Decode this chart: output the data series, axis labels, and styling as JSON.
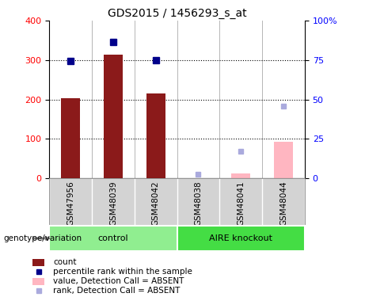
{
  "title": "GDS2015 / 1456293_s_at",
  "samples": [
    "GSM47956",
    "GSM48039",
    "GSM48042",
    "GSM48038",
    "GSM48041",
    "GSM48044"
  ],
  "bar_values": [
    203,
    313,
    215,
    null,
    null,
    null
  ],
  "bar_values_absent": [
    null,
    null,
    null,
    null,
    13,
    93
  ],
  "rank_present": [
    null,
    346,
    null,
    null,
    null,
    null
  ],
  "rank_present_dot": [
    297,
    null,
    299,
    null,
    null,
    null
  ],
  "rank_absent": [
    null,
    null,
    null,
    10,
    68,
    183
  ],
  "bar_color_present": "#8B1A1A",
  "bar_color_absent": "#FFB6C1",
  "rank_color_present": "#00008B",
  "rank_color_absent": "#AAAADD",
  "ylim_left": [
    0,
    400
  ],
  "ylim_right": [
    0,
    100
  ],
  "yticks_left": [
    0,
    100,
    200,
    300,
    400
  ],
  "yticks_right": [
    0,
    25,
    50,
    75,
    100
  ],
  "ytick_labels_right": [
    "0",
    "25",
    "50",
    "75",
    "100%"
  ],
  "legend": [
    {
      "label": "count",
      "color": "#8B1A1A",
      "type": "rect"
    },
    {
      "label": "percentile rank within the sample",
      "color": "#00008B",
      "type": "square"
    },
    {
      "label": "value, Detection Call = ABSENT",
      "color": "#FFB6C1",
      "type": "rect"
    },
    {
      "label": "rank, Detection Call = ABSENT",
      "color": "#AAAADD",
      "type": "square"
    }
  ],
  "bar_width": 0.45,
  "rank_square_size": 6,
  "absent_rank_square_size": 5,
  "ctrl_color": "#90EE90",
  "aire_color": "#44DD44",
  "label_bg_color": "#D3D3D3",
  "n_ctrl": 3,
  "n_aire": 3
}
